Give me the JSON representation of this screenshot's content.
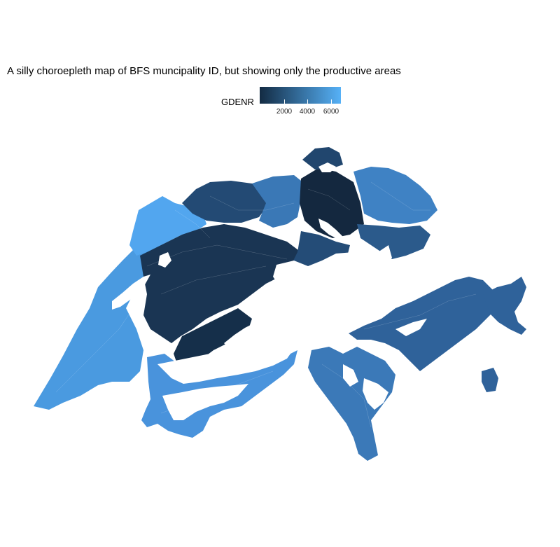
{
  "title": "A silly choroepleth map of BFS muncipality ID, but showing only the productive areas",
  "legend": {
    "name": "GDENR",
    "ticks": [
      {
        "label": "2000",
        "value": 2000
      },
      {
        "label": "4000",
        "value": 4000
      },
      {
        "label": "6000",
        "value": 6000
      }
    ],
    "range": [
      1,
      6810
    ],
    "color_low": "#132B43",
    "color_high": "#56B1F7"
  },
  "colors": {
    "background": "#ffffff",
    "gaps": "#ffffff"
  }
}
